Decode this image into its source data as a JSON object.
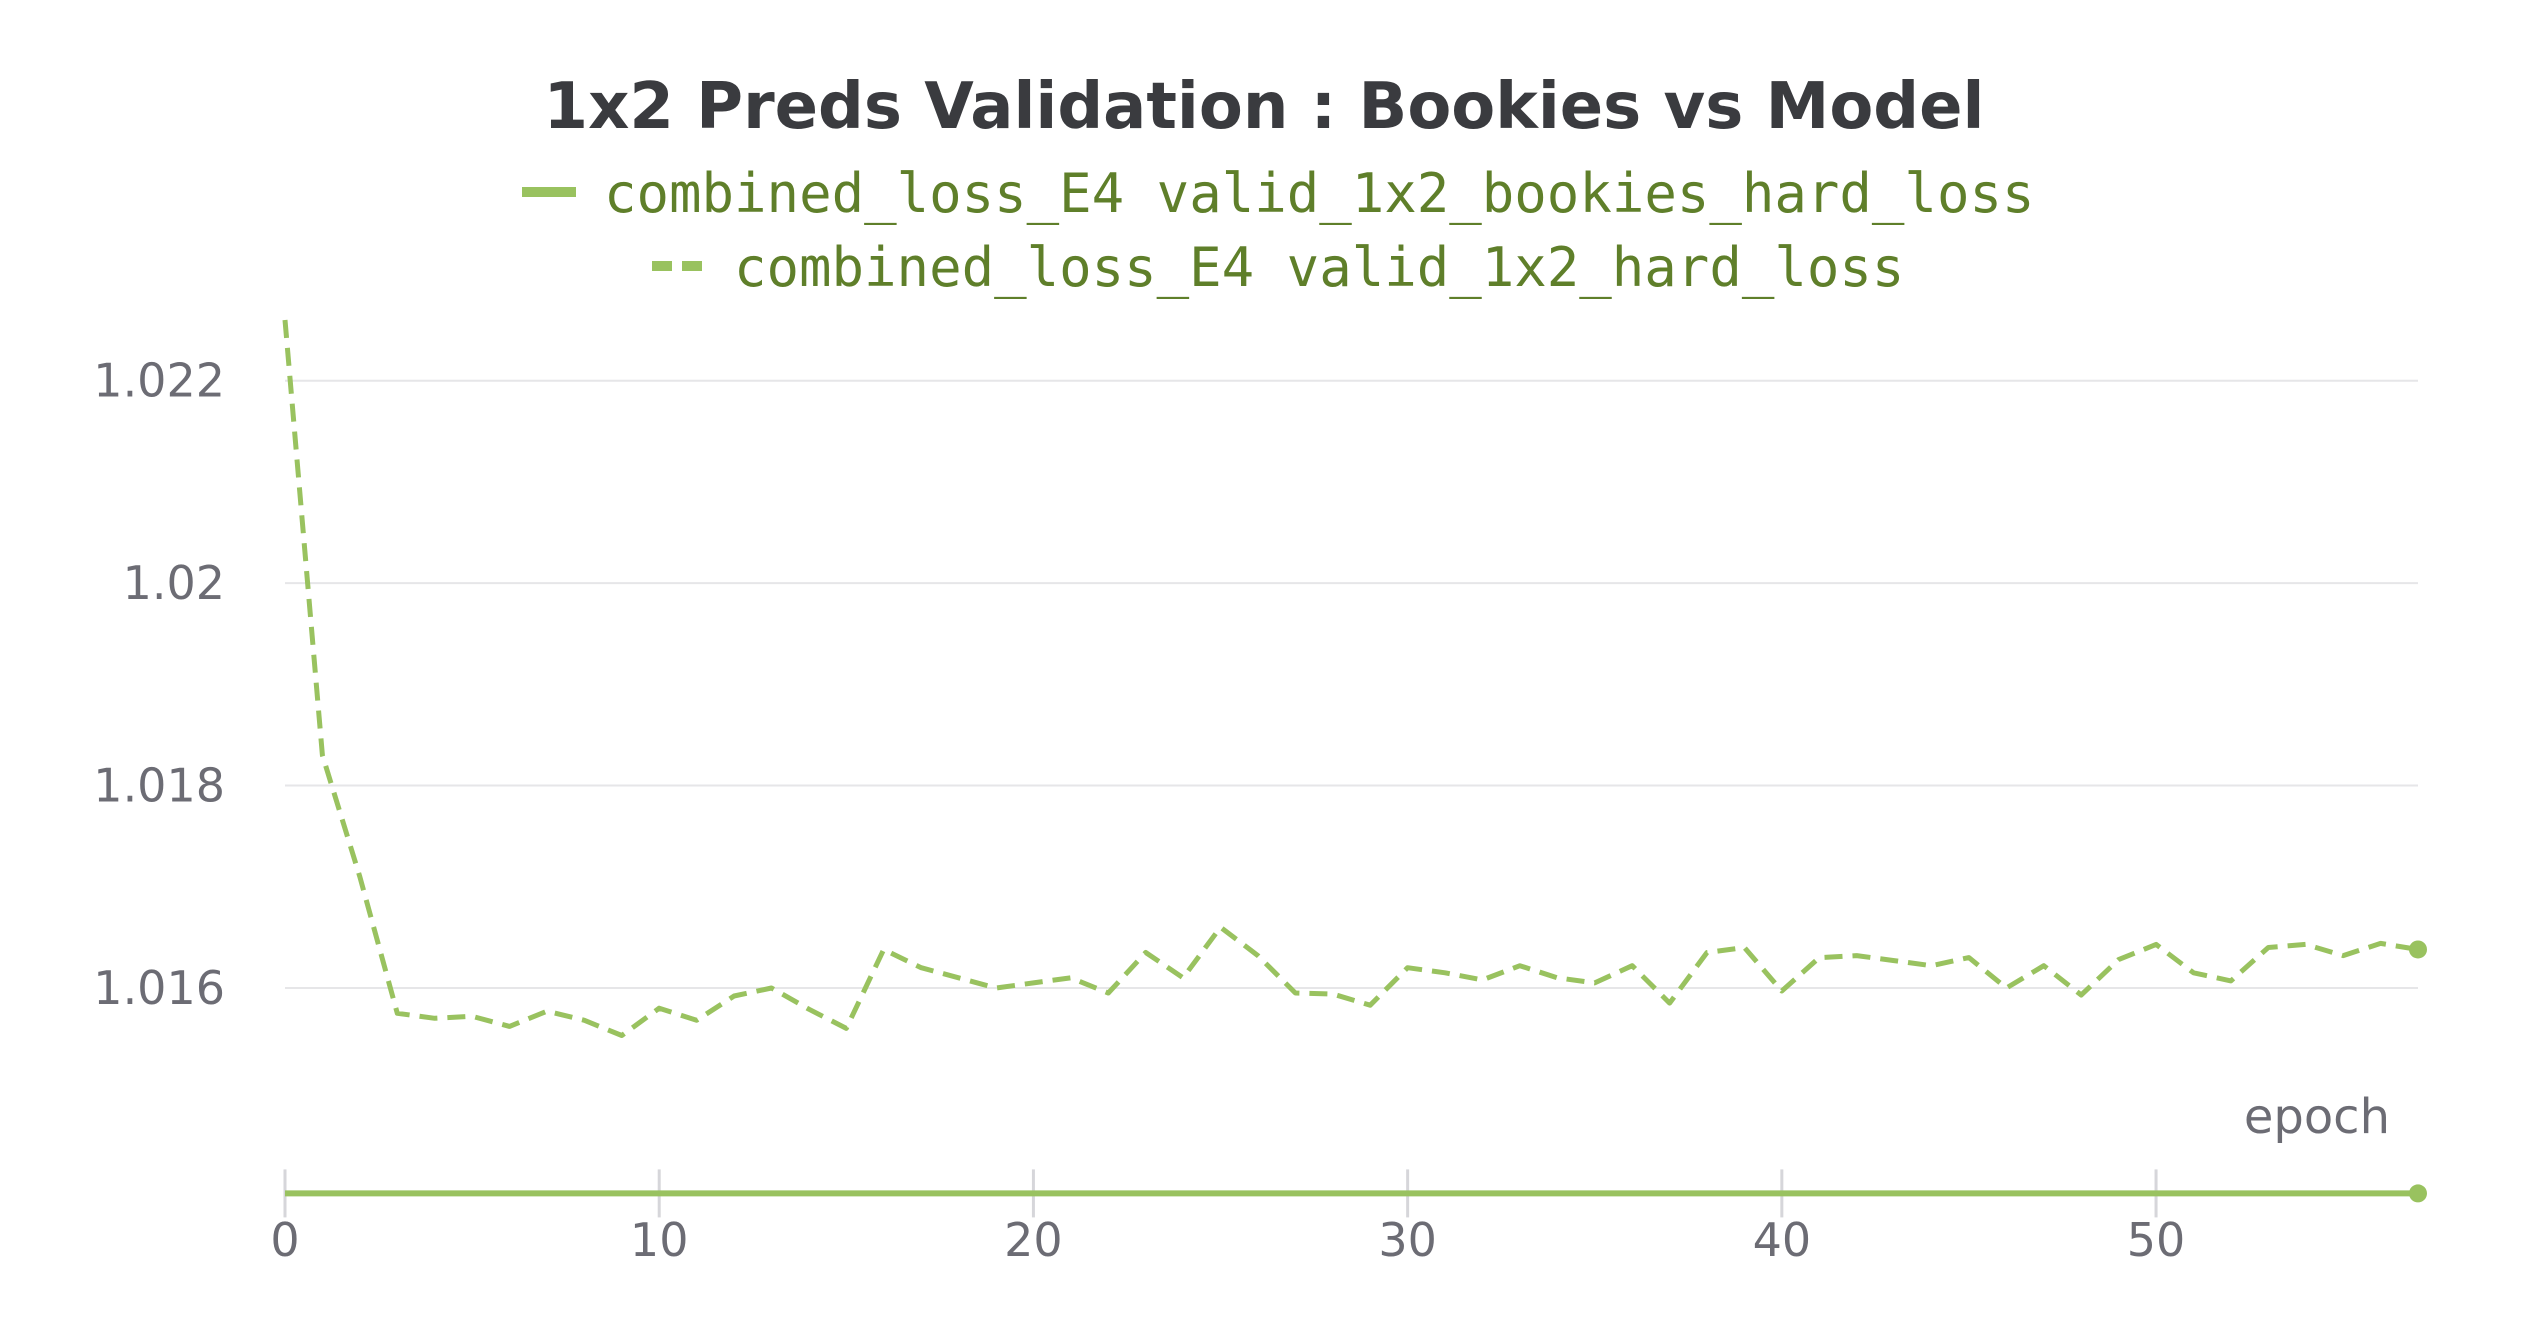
{
  "chart_data": {
    "type": "line",
    "title": "1x2 Preds Validation : Bookies vs Model",
    "xlabel": "epoch",
    "ylabel": "",
    "xlim": [
      0,
      57
    ],
    "ylim": [
      1.0143,
      1.0226
    ],
    "x_ticks": [
      0,
      10,
      20,
      30,
      40,
      50
    ],
    "x_tick_labels": [
      "0",
      "10",
      "20",
      "30",
      "40",
      "50"
    ],
    "y_ticks": [
      1.016,
      1.018,
      1.02,
      1.022
    ],
    "y_tick_labels": [
      "1.016",
      "1.018",
      "1.02",
      "1.022"
    ],
    "grid": true,
    "legend_position": "top-center",
    "colors": {
      "line": "#99c25f",
      "legend_text": "#5f7f2a"
    },
    "series": [
      {
        "name": "combined_loss_E4 valid_1x2_bookies_hard_loss",
        "style": "solid",
        "x": [
          0,
          57
        ],
        "values": [
          1.01397,
          1.01397
        ]
      },
      {
        "name": "combined_loss_E4 valid_1x2_hard_loss",
        "style": "dashed",
        "x": [
          0,
          1,
          2,
          3,
          4,
          5,
          6,
          7,
          8,
          9,
          10,
          11,
          12,
          13,
          14,
          15,
          16,
          17,
          18,
          19,
          20,
          21,
          22,
          23,
          24,
          25,
          26,
          27,
          28,
          29,
          30,
          31,
          32,
          33,
          34,
          35,
          36,
          37,
          38,
          39,
          40,
          41,
          42,
          43,
          44,
          45,
          46,
          47,
          48,
          49,
          50,
          51,
          52,
          53,
          54,
          55,
          56,
          57
        ],
        "values": [
          1.0226,
          1.0183,
          1.0171,
          1.01575,
          1.0157,
          1.01572,
          1.01562,
          1.01577,
          1.01568,
          1.01553,
          1.0158,
          1.01568,
          1.01592,
          1.016,
          1.01579,
          1.0156,
          1.01638,
          1.0162,
          1.0161,
          1.016,
          1.01605,
          1.0161,
          1.01595,
          1.01635,
          1.0161,
          1.0166,
          1.01632,
          1.01595,
          1.01594,
          1.01583,
          1.0162,
          1.01615,
          1.01608,
          1.01622,
          1.0161,
          1.01605,
          1.01622,
          1.01585,
          1.01635,
          1.0164,
          1.01597,
          1.0163,
          1.01632,
          1.01627,
          1.01622,
          1.0163,
          1.016,
          1.01622,
          1.01593,
          1.01628,
          1.01643,
          1.01615,
          1.01607,
          1.0164,
          1.01643,
          1.01632,
          1.01644,
          1.01638
        ]
      }
    ]
  }
}
